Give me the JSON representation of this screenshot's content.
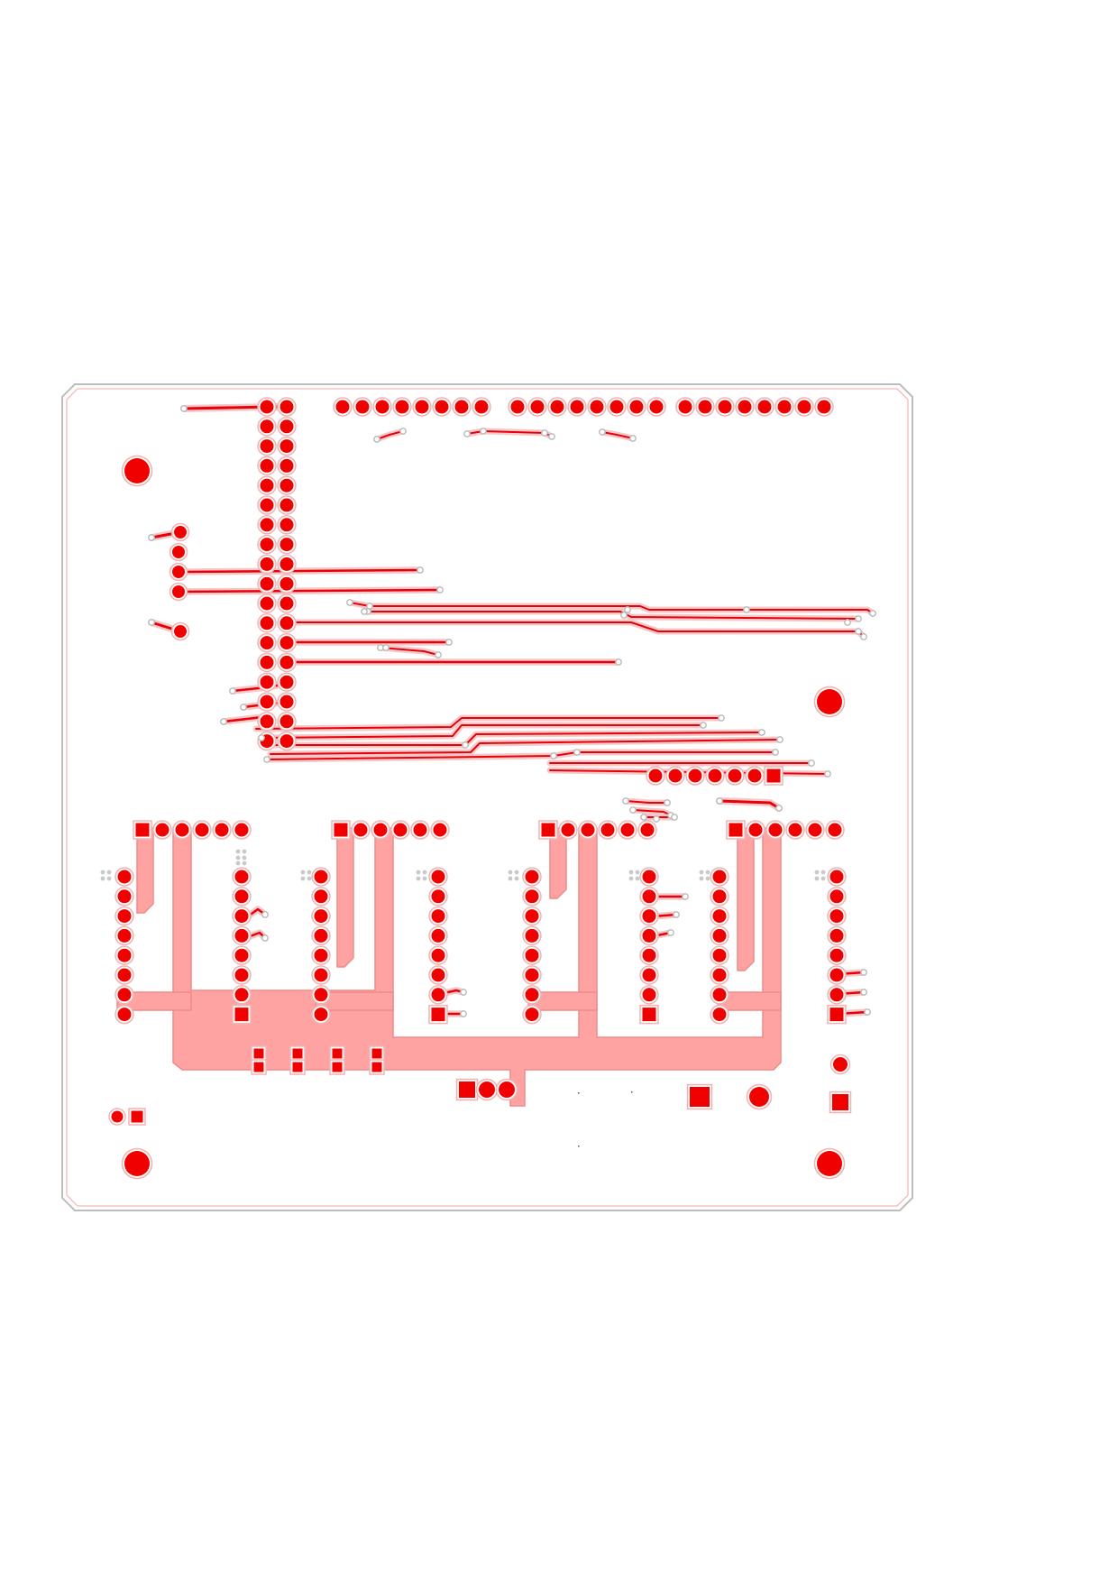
{
  "board": {
    "layer": "bottom-copper",
    "colors": {
      "copper": "#f10000",
      "trace": "#e8000b",
      "copper_fill": "#ffa2a2",
      "clearance": "#f3b2b2",
      "outline": "#bdbdbd",
      "via": "#c9c9c9",
      "background": "#ffffff"
    }
  }
}
